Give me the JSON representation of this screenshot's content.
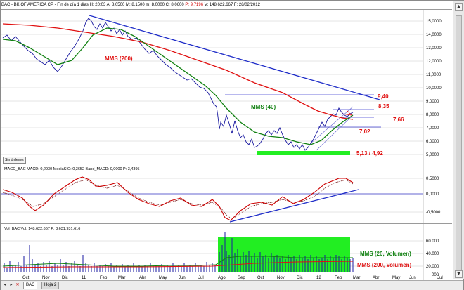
{
  "header": {
    "title": "BAC - BK OF AMERICA CP - Fin de día 1 días",
    "stats": "H: 20:03  A: 8,0500  M: 8,1500  m: 8,0000  C: 8,0600",
    "pct": "P: 9,7196",
    "volume": "V: 148.622.667  F: 28/02/2012"
  },
  "price_panel": {
    "y_ticks": [
      "15,0000",
      "14,0000",
      "13,0000",
      "12,0000",
      "11,0000",
      "10,0000",
      "9,0000",
      "8,0000",
      "7,0000",
      "6,0000",
      "5,0000"
    ],
    "annotations": {
      "mms200": "MMS (200)",
      "mms40": "MMS (40)",
      "level_940": "9,40",
      "level_835": "8,35",
      "level_766": "7,66",
      "level_702": "7,02",
      "level_support": "5,13 / 4,92"
    },
    "sin_ordenes": "Sin órdenes"
  },
  "macd_panel": {
    "legend": "MACD_BAC  MACD: 0,2930  MediaSIG: 0,3652  Band_MACD: 0,0000  P: 3,4395",
    "y_ticks": [
      "0,5000",
      "0,0000",
      "-0,5000"
    ]
  },
  "volume_panel": {
    "legend": "Vol_BAC  Vol: 148.622.667  P: 3.631.931.616",
    "y_ticks": [
      "60.000",
      "40.000",
      "20.000"
    ],
    "y_unit": "000",
    "annotations": {
      "mms20": "MMS (20, Volumen)",
      "mms200": "MMS (200, Volumen)"
    }
  },
  "x_axis": [
    "Oct",
    "Nov",
    "Dic",
    "11",
    "Feb",
    "Mar",
    "Abr",
    "May",
    "Jun",
    "Jul",
    "Ago",
    "Sep",
    "Oct",
    "Nov",
    "Dic",
    "12",
    "Feb",
    "Mar",
    "Abr",
    "May",
    "Jun",
    "Jul"
  ],
  "tabs": [
    {
      "label": "BAC",
      "active": true
    },
    {
      "label": "Hoja 2",
      "active": false
    }
  ],
  "colors": {
    "price": "#1a1aa0",
    "mms200": "#e01010",
    "mms40": "#108010",
    "trend": "#1e2cc8",
    "level": "#4040d0",
    "macd": "#cc0000",
    "signal": "#660000",
    "band": "#3030c0",
    "highlight": "#22ee22"
  }
}
